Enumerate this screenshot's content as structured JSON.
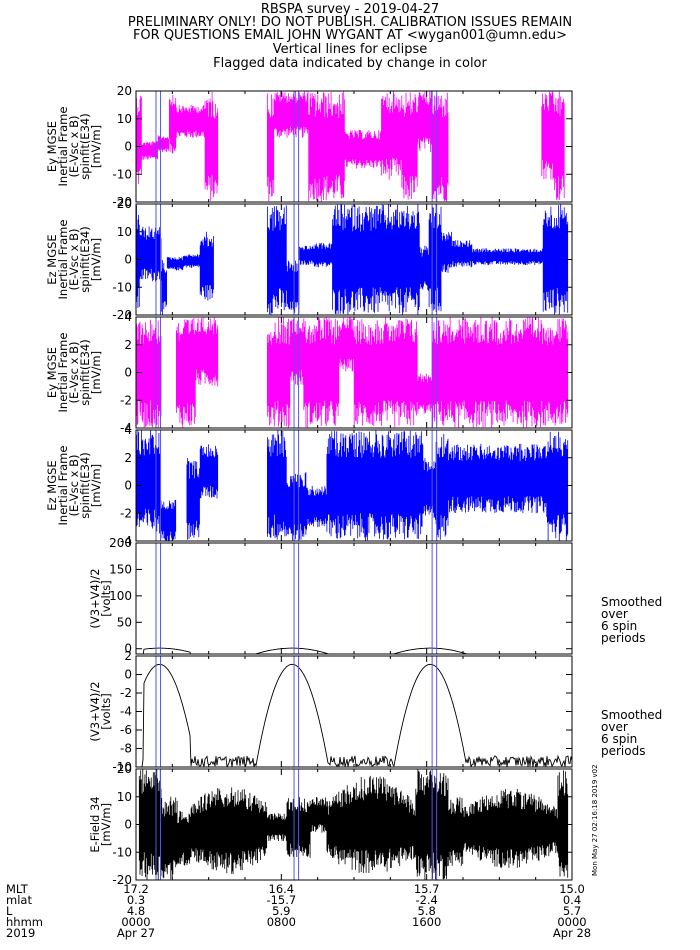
{
  "header": {
    "lines": [
      "RBSPA survey - 2019-04-27",
      "PRELIMINARY ONLY! DO NOT PUBLISH. CALIBRATION ISSUES REMAIN",
      "FOR QUESTIONS EMAIL JOHN WYGANT AT <wygan001@umn.edu>",
      "Vertical lines for eclipse",
      "Flagged data indicated by change in color"
    ]
  },
  "colors": {
    "magenta": "#ff00ff",
    "blue": "#0000ff",
    "black": "#000000",
    "eclipse": "#5555ee"
  },
  "side_note": "Mon May 27 02:16:18 2019 v02",
  "eclipse_intervals_hours": [
    [
      1.1,
      1.35
    ],
    [
      8.7,
      8.95
    ],
    [
      16.3,
      16.55
    ]
  ],
  "chart_data": [
    {
      "type": "line",
      "panel": "ey-mgse-1",
      "ylabel_lines": [
        "Ey MGSE",
        "Inertial Frame",
        "(E-Vsc x B)",
        "spinfit(E34)",
        "[mV/m]"
      ],
      "ylim": [
        -20,
        20
      ],
      "yticks": [
        -20,
        -10,
        0,
        10,
        20
      ],
      "series_color": "magenta"
    },
    {
      "type": "line",
      "panel": "ez-mgse-1",
      "ylabel_lines": [
        "Ez MGSE",
        "Inertial Frame",
        "(E-Vsc x B)",
        "spinfit(E34)",
        "[mV/m]"
      ],
      "ylim": [
        -20,
        20
      ],
      "yticks": [
        -20,
        -10,
        0,
        10,
        20
      ],
      "series_color": "blue"
    },
    {
      "type": "line",
      "panel": "ey-mgse-2",
      "ylabel_lines": [
        "Ey MGSE",
        "Inertial Frame",
        "(E-Vsc x B)",
        "spinfit(E34)",
        "[mV/m]"
      ],
      "ylim": [
        -4,
        4
      ],
      "yticks": [
        -4,
        -2,
        0,
        2,
        4
      ],
      "series_color": "magenta"
    },
    {
      "type": "line",
      "panel": "ez-mgse-2",
      "ylabel_lines": [
        "Ez MGSE",
        "Inertial Frame",
        "(E-Vsc x B)",
        "spinfit(E34)",
        "[mV/m]"
      ],
      "ylim": [
        -4,
        4
      ],
      "yticks": [
        -4,
        -2,
        0,
        2,
        4
      ],
      "series_color": "blue"
    },
    {
      "type": "line",
      "panel": "v34-full",
      "ylabel_lines": [
        "(V3+V4)/2",
        "[volts]"
      ],
      "ylim": [
        -10,
        200
      ],
      "yticks": [
        0,
        50,
        100,
        150,
        200
      ],
      "series_color": "black",
      "note_lines": [
        "Smoothed",
        "over",
        "6 spin",
        "periods"
      ]
    },
    {
      "type": "line",
      "panel": "v34-zoom",
      "ylabel_lines": [
        "(V3+V4)/2",
        "[volts]"
      ],
      "ylim": [
        -10,
        2
      ],
      "yticks": [
        -10,
        -8,
        -6,
        -4,
        -2,
        0,
        2
      ],
      "series_color": "black",
      "note_lines": [
        "Smoothed",
        "over",
        "6 spin",
        "periods"
      ]
    },
    {
      "type": "line",
      "panel": "e-field-34",
      "ylabel_lines": [
        "E-Field 34",
        "[mV/m]"
      ],
      "ylim": [
        -20,
        20
      ],
      "yticks": [
        -20,
        -10,
        0,
        10,
        20
      ],
      "series_color": "black"
    }
  ],
  "x_axis": {
    "range_hours": [
      0,
      24
    ],
    "row_labels": [
      "MLT",
      "mlat",
      "L",
      "hhmm",
      "2019"
    ],
    "ticks": [
      {
        "hour": 0,
        "values": [
          "17.2",
          "0.3",
          "4.8",
          "0000",
          "Apr 27"
        ]
      },
      {
        "hour": 8,
        "values": [
          "16.4",
          "-15.7",
          "5.9",
          "0800",
          ""
        ]
      },
      {
        "hour": 16,
        "values": [
          "15.7",
          "-2.4",
          "5.8",
          "1600",
          ""
        ]
      },
      {
        "hour": 24,
        "values": [
          "15.0",
          "0.4",
          "5.7",
          "0000",
          "Apr 28"
        ]
      }
    ]
  }
}
